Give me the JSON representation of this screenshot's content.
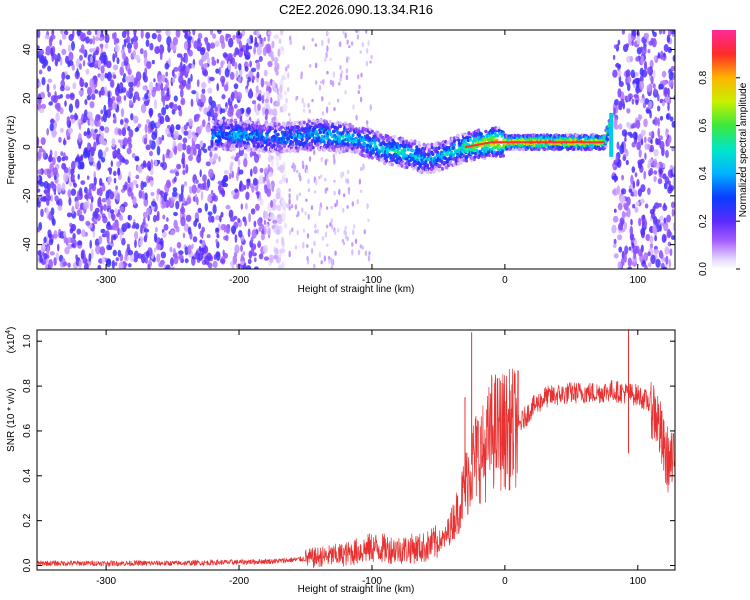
{
  "figure_title": "C2E2.2026.090.13.34.R16",
  "colors": {
    "snr_line": "#e83030",
    "axis": "#000000",
    "band_low": "#2e1aa8",
    "band_high": "#ff3030"
  },
  "chart_data": [
    {
      "type": "heatmap",
      "title": "",
      "xlabel": "Height of straight line (km)",
      "ylabel": "Frequency (Hz)",
      "xlim": [
        -352,
        128
      ],
      "ylim": [
        -50,
        48
      ],
      "xticks": [
        -300,
        -200,
        -100,
        0,
        100
      ],
      "yticks": [
        -40,
        -20,
        0,
        20,
        40
      ],
      "grid": false,
      "colorbar": {
        "label": "Normalized spectral amplitude",
        "range": [
          0.0,
          1.0
        ],
        "ticks": [
          0.0,
          0.2,
          0.4,
          0.6,
          0.8
        ],
        "tick_labels": [
          "0.0",
          "0.2",
          "0.4",
          "0.6",
          "0.8"
        ],
        "colormap": "rainbow (white, violet, blue, cyan, green, yellow, red, magenta)"
      },
      "noise_regions_km": [
        [
          -352,
          -165
        ],
        [
          82,
          128
        ]
      ],
      "signal_ridge": {
        "x_km": [
          -220,
          -200,
          -180,
          -160,
          -140,
          -120,
          -110,
          -100,
          -90,
          -80,
          -70,
          -60,
          -50,
          -40,
          -30,
          -20,
          -10,
          0,
          20,
          40,
          60,
          75,
          80
        ],
        "freq_hz": [
          5,
          5,
          4,
          4,
          5,
          4,
          3,
          1,
          -1,
          -2,
          -3,
          -5,
          -4,
          -2,
          0,
          1,
          2,
          2,
          2,
          2,
          2,
          2,
          10
        ],
        "amplitude": [
          0.35,
          0.4,
          0.35,
          0.4,
          0.45,
          0.45,
          0.4,
          0.45,
          0.45,
          0.5,
          0.45,
          0.4,
          0.4,
          0.45,
          0.55,
          0.7,
          0.8,
          0.85,
          0.9,
          0.9,
          0.9,
          0.8,
          0.5
        ]
      }
    },
    {
      "type": "line",
      "title": "",
      "xlabel": "Height of straight line (km)",
      "ylabel": "SNR (10 * v/v)",
      "y_scale_label": "(x10",
      "y_scale_exp": "4",
      "y_scale_close": ")",
      "xlim": [
        -352,
        128
      ],
      "ylim": [
        -0.02,
        1.05
      ],
      "xticks": [
        -300,
        -200,
        -100,
        0,
        100
      ],
      "yticks": [
        0.0,
        0.2,
        0.4,
        0.6,
        0.8,
        1.0
      ],
      "ytick_labels": [
        "0.0",
        "0.2",
        "0.4",
        "0.6",
        "0.8",
        "1.0"
      ],
      "grid": false,
      "series": [
        {
          "name": "SNR",
          "x": [
            -350,
            -300,
            -250,
            -200,
            -170,
            -150,
            -120,
            -100,
            -80,
            -60,
            -45,
            -35,
            -30,
            -25,
            -20,
            -15,
            -10,
            0,
            10,
            20,
            30,
            40,
            50,
            60,
            70,
            80,
            90,
            100,
            110,
            115,
            120,
            125
          ],
          "y": [
            0.01,
            0.01,
            0.01,
            0.015,
            0.02,
            0.03,
            0.05,
            0.08,
            0.07,
            0.08,
            0.12,
            0.25,
            0.35,
            0.45,
            0.5,
            0.5,
            0.6,
            0.6,
            0.62,
            0.7,
            0.75,
            0.76,
            0.77,
            0.77,
            0.77,
            0.78,
            0.77,
            0.76,
            0.72,
            0.65,
            0.5,
            0.45
          ]
        }
      ],
      "spikes": [
        {
          "x": -25,
          "y": 1.04
        },
        {
          "x": -30,
          "y": 0.75
        },
        {
          "x": 10,
          "y": 0.87
        },
        {
          "x": 93,
          "y": 1.05
        },
        {
          "x": 93,
          "y": 0.5
        }
      ]
    }
  ]
}
